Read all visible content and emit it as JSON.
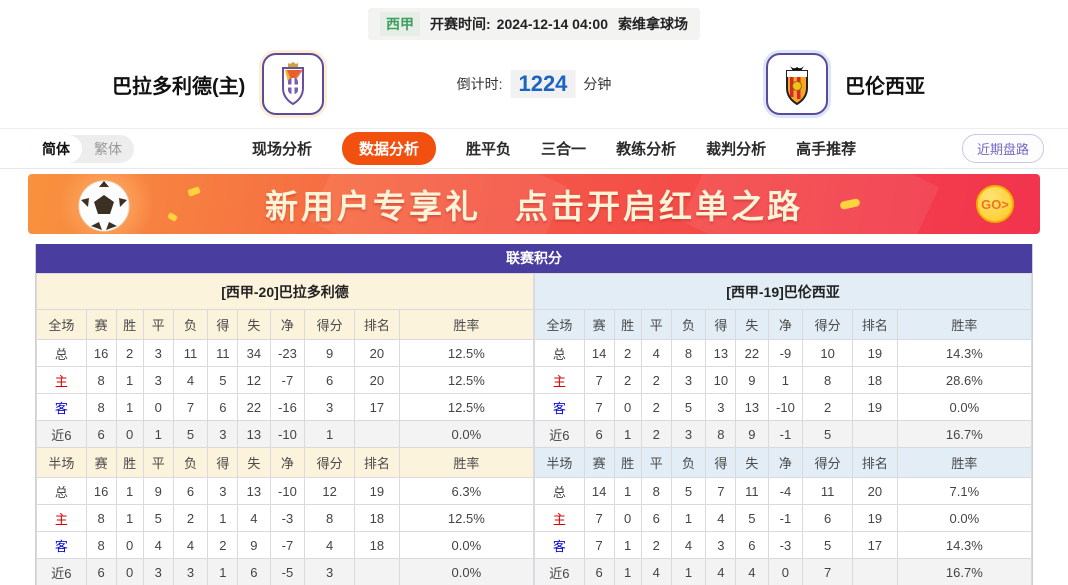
{
  "match_header": {
    "league_badge": "西甲",
    "kickoff_label": "开赛时间:",
    "kickoff_time": "2024-12-14 04:00",
    "venue": "索维拿球场",
    "home_team": "巴拉多利德(主)",
    "away_team": "巴伦西亚",
    "countdown_label": "倒计时:",
    "countdown_value": "1224",
    "countdown_unit": "分钟"
  },
  "nav": {
    "lang_simplified": "简体",
    "lang_traditional": "繁体",
    "tabs": [
      {
        "label": "现场分析",
        "active": false
      },
      {
        "label": "数据分析",
        "active": true
      },
      {
        "label": "胜平负",
        "active": false
      },
      {
        "label": "三合一",
        "active": false
      },
      {
        "label": "教练分析",
        "active": false
      },
      {
        "label": "裁判分析",
        "active": false
      },
      {
        "label": "高手推荐",
        "active": false
      }
    ],
    "recent_button": "近期盘路"
  },
  "banner": {
    "text_left": "新用户专享礼",
    "text_right": "点击开启红单之路",
    "go_label": "GO>"
  },
  "colors": {
    "accent_purple": "#4a3da0",
    "tab_active_orange": "#f2500f",
    "countdown_blue": "#1a64c4",
    "home_label_red": "#d60000",
    "away_label_blue": "#0b0bd0",
    "home_theme_cream": "#fcf3dd",
    "away_theme_blue": "#e3edf6"
  },
  "league_table": {
    "title": "联赛积分",
    "sections": [
      {
        "header": "[西甲-20]巴拉多利德",
        "theme": "cream",
        "blocks": [
          {
            "columns": [
              "全场",
              "赛",
              "胜",
              "平",
              "负",
              "得",
              "失",
              "净",
              "得分",
              "排名",
              "胜率"
            ],
            "rows": [
              {
                "label": "总",
                "values": [
                  "16",
                  "2",
                  "3",
                  "11",
                  "11",
                  "34",
                  "-23",
                  "9",
                  "20",
                  "12.5%"
                ]
              },
              {
                "label": "主",
                "values": [
                  "8",
                  "1",
                  "3",
                  "4",
                  "5",
                  "12",
                  "-7",
                  "6",
                  "20",
                  "12.5%"
                ]
              },
              {
                "label": "客",
                "values": [
                  "8",
                  "1",
                  "0",
                  "7",
                  "6",
                  "22",
                  "-16",
                  "3",
                  "17",
                  "12.5%"
                ]
              },
              {
                "label": "近6",
                "values": [
                  "6",
                  "0",
                  "1",
                  "5",
                  "3",
                  "13",
                  "-10",
                  "1",
                  "",
                  "0.0%"
                ]
              }
            ]
          },
          {
            "columns": [
              "半场",
              "赛",
              "胜",
              "平",
              "负",
              "得",
              "失",
              "净",
              "得分",
              "排名",
              "胜率"
            ],
            "rows": [
              {
                "label": "总",
                "values": [
                  "16",
                  "1",
                  "9",
                  "6",
                  "3",
                  "13",
                  "-10",
                  "12",
                  "19",
                  "6.3%"
                ]
              },
              {
                "label": "主",
                "values": [
                  "8",
                  "1",
                  "5",
                  "2",
                  "1",
                  "4",
                  "-3",
                  "8",
                  "18",
                  "12.5%"
                ]
              },
              {
                "label": "客",
                "values": [
                  "8",
                  "0",
                  "4",
                  "4",
                  "2",
                  "9",
                  "-7",
                  "4",
                  "18",
                  "0.0%"
                ]
              },
              {
                "label": "近6",
                "values": [
                  "6",
                  "0",
                  "3",
                  "3",
                  "1",
                  "6",
                  "-5",
                  "3",
                  "",
                  "0.0%"
                ]
              }
            ]
          }
        ]
      },
      {
        "header": "[西甲-19]巴伦西亚",
        "theme": "blue",
        "blocks": [
          {
            "columns": [
              "全场",
              "赛",
              "胜",
              "平",
              "负",
              "得",
              "失",
              "净",
              "得分",
              "排名",
              "胜率"
            ],
            "rows": [
              {
                "label": "总",
                "values": [
                  "14",
                  "2",
                  "4",
                  "8",
                  "13",
                  "22",
                  "-9",
                  "10",
                  "19",
                  "14.3%"
                ]
              },
              {
                "label": "主",
                "values": [
                  "7",
                  "2",
                  "2",
                  "3",
                  "10",
                  "9",
                  "1",
                  "8",
                  "18",
                  "28.6%"
                ]
              },
              {
                "label": "客",
                "values": [
                  "7",
                  "0",
                  "2",
                  "5",
                  "3",
                  "13",
                  "-10",
                  "2",
                  "19",
                  "0.0%"
                ]
              },
              {
                "label": "近6",
                "values": [
                  "6",
                  "1",
                  "2",
                  "3",
                  "8",
                  "9",
                  "-1",
                  "5",
                  "",
                  "16.7%"
                ]
              }
            ]
          },
          {
            "columns": [
              "半场",
              "赛",
              "胜",
              "平",
              "负",
              "得",
              "失",
              "净",
              "得分",
              "排名",
              "胜率"
            ],
            "rows": [
              {
                "label": "总",
                "values": [
                  "14",
                  "1",
                  "8",
                  "5",
                  "7",
                  "11",
                  "-4",
                  "11",
                  "20",
                  "7.1%"
                ]
              },
              {
                "label": "主",
                "values": [
                  "7",
                  "0",
                  "6",
                  "1",
                  "4",
                  "5",
                  "-1",
                  "6",
                  "19",
                  "0.0%"
                ]
              },
              {
                "label": "客",
                "values": [
                  "7",
                  "1",
                  "2",
                  "4",
                  "3",
                  "6",
                  "-3",
                  "5",
                  "17",
                  "14.3%"
                ]
              },
              {
                "label": "近6",
                "values": [
                  "6",
                  "1",
                  "4",
                  "1",
                  "4",
                  "4",
                  "0",
                  "7",
                  "",
                  "16.7%"
                ]
              }
            ]
          }
        ]
      }
    ]
  }
}
